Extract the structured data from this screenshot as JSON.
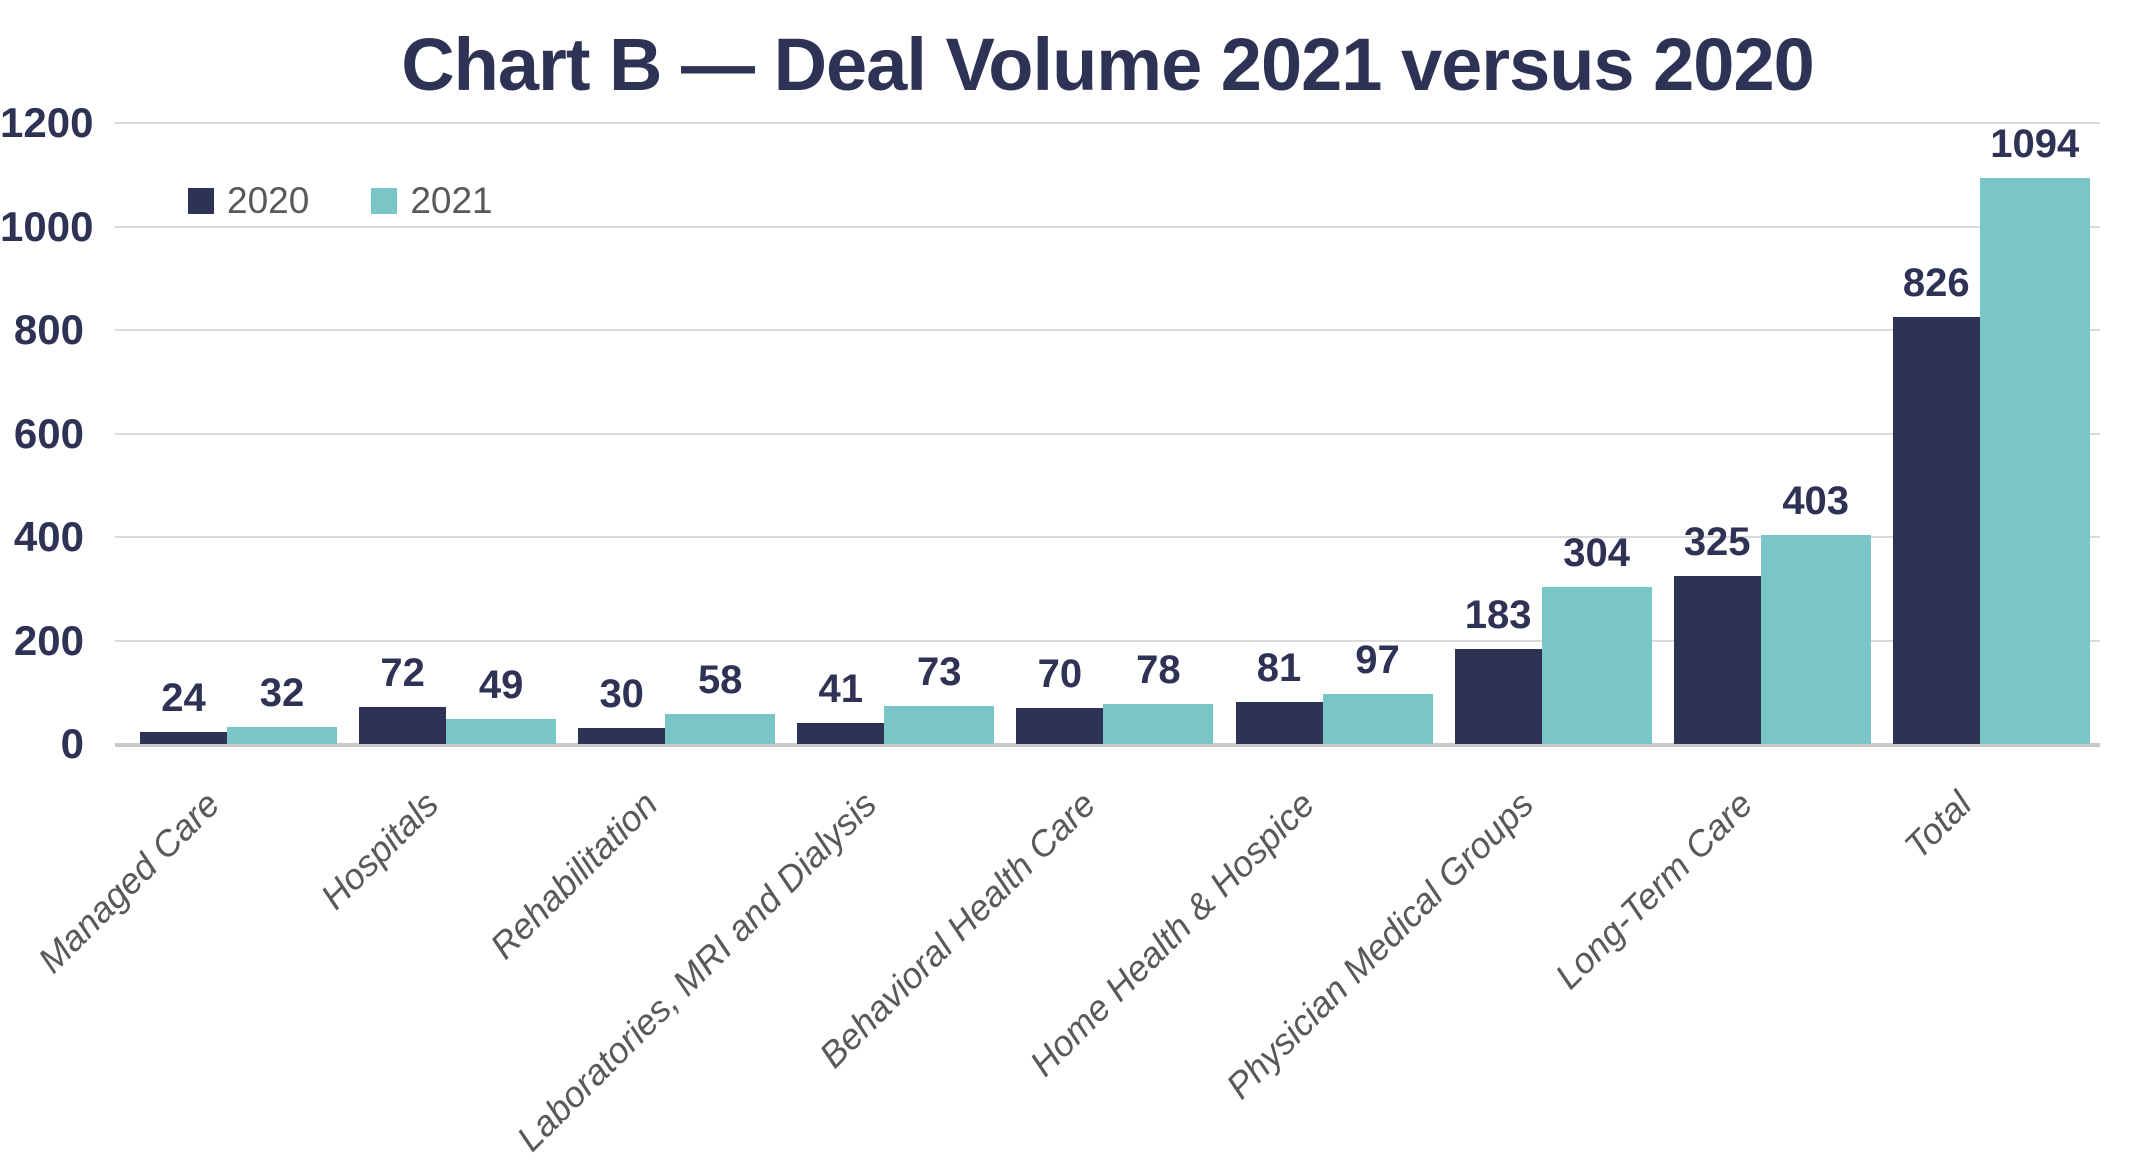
{
  "title": "Chart B — Deal Volume 2021 versus 2020",
  "colors": {
    "navy": "#2e3355",
    "teal": "#7ac5c6",
    "gridline": "#d9d9d9",
    "axis_line": "#c8c8c8",
    "text_gray": "#595959"
  },
  "legend": {
    "items": [
      {
        "label": "2020",
        "color": "#2e3355"
      },
      {
        "label": "2021",
        "color": "#7ac5c6"
      }
    ]
  },
  "chart_data": {
    "type": "bar",
    "title": "Chart B — Deal Volume 2021 versus 2020",
    "categories": [
      "Managed Care",
      "Hospitals",
      "Rehabilitation",
      "Laboratories, MRI and Dialysis",
      "Behavioral Health Care",
      "Home Health & Hospice",
      "Physician Medical Groups",
      "Long-Term Care",
      "Total"
    ],
    "series": [
      {
        "name": "2020",
        "color": "#2e3355",
        "values": [
          24,
          72,
          30,
          41,
          70,
          81,
          183,
          325,
          826
        ]
      },
      {
        "name": "2021",
        "color": "#7ac5c6",
        "values": [
          32,
          49,
          58,
          73,
          78,
          97,
          304,
          403,
          1094
        ]
      }
    ],
    "xlabel": "",
    "ylabel": "",
    "ylim": [
      0,
      1200
    ],
    "yticks": [
      0,
      200,
      400,
      600,
      800,
      1000,
      1200
    ],
    "grid": true,
    "data_labels": true,
    "legend_position": "top-left",
    "x_label_rotation_deg": -45
  }
}
